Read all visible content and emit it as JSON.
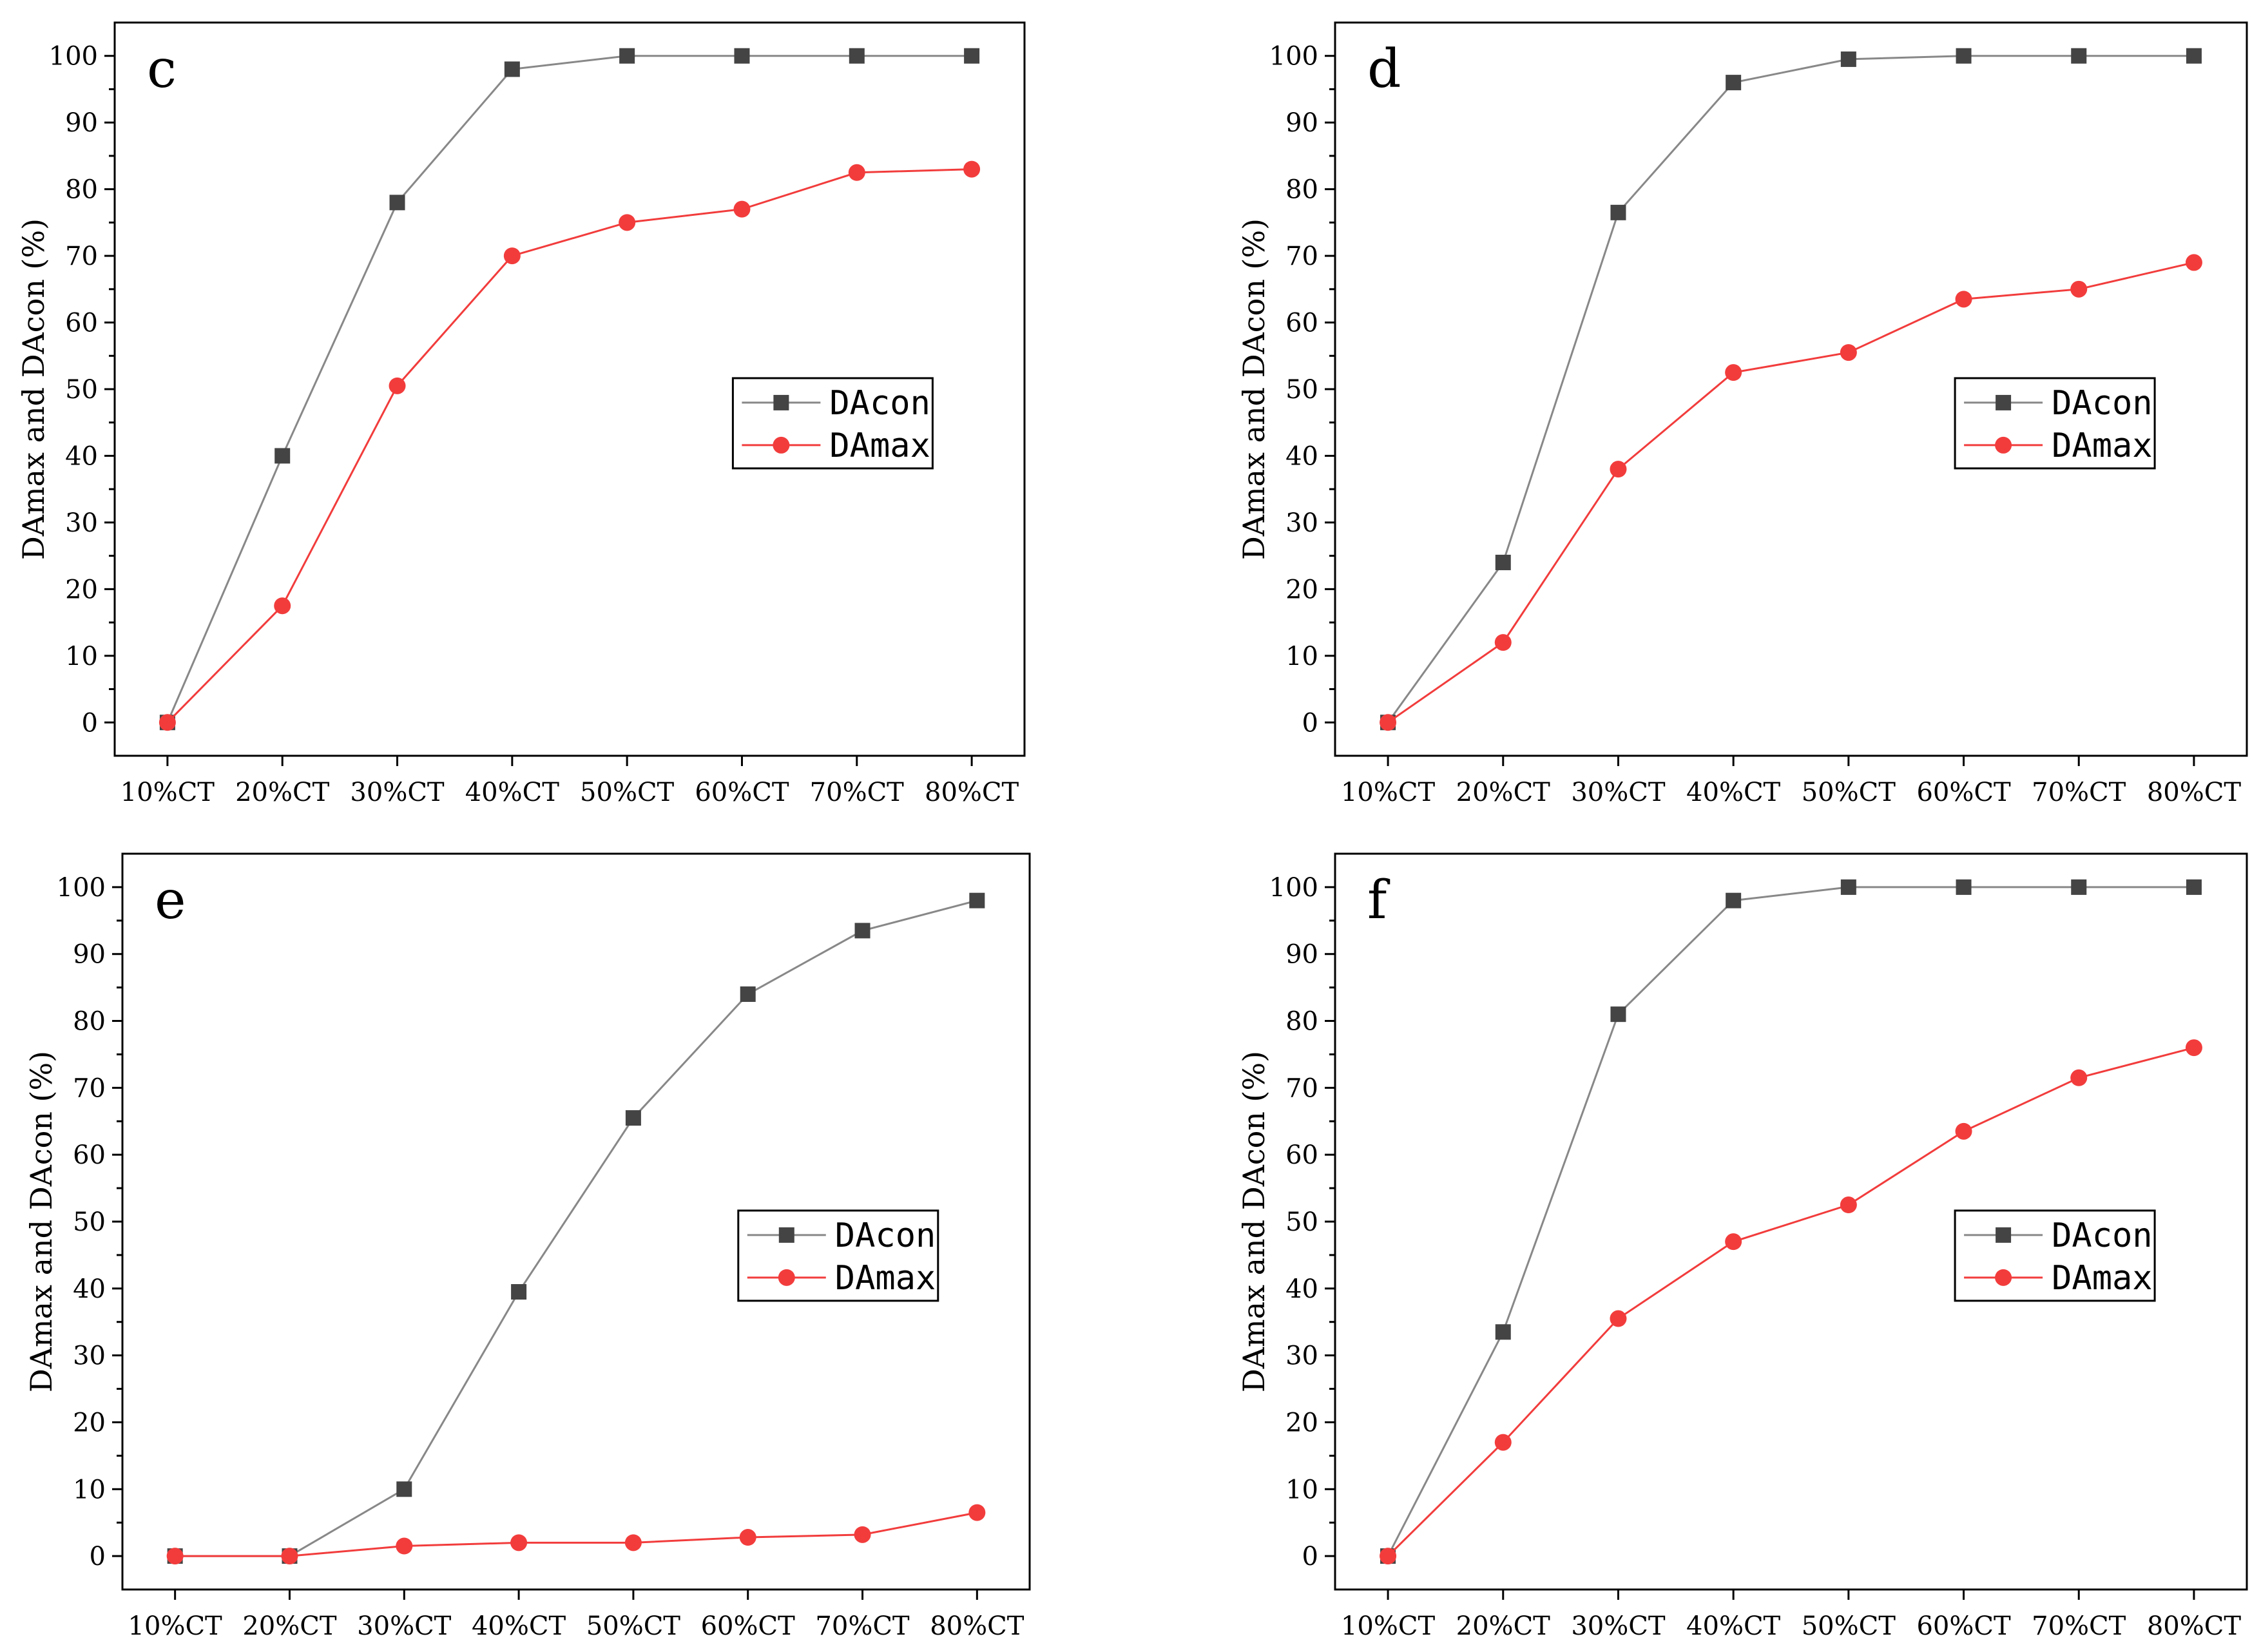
{
  "figure": {
    "panels": [
      {
        "panel_label": "c",
        "ylabel": "DAmax and DAcon (%)",
        "legend": [
          "DAcon",
          "DAmax"
        ]
      },
      {
        "panel_label": "d",
        "ylabel": "DAmax and DAcon (%)",
        "legend": [
          "DAcon",
          "DAmax"
        ]
      },
      {
        "panel_label": "e",
        "ylabel": "DAmax and DAcon (%)",
        "legend": [
          "DAcon",
          "DAmax"
        ]
      },
      {
        "panel_label": "f",
        "ylabel": "DAmax and DAcon (%)",
        "legend": [
          "DAcon",
          "DAmax"
        ]
      }
    ]
  },
  "chart_data": [
    {
      "type": "line",
      "title": "c",
      "xlabel": "",
      "ylabel": "DAmax and DAcon (%)",
      "categories": [
        "10%CT",
        "20%CT",
        "30%CT",
        "40%CT",
        "50%CT",
        "60%CT",
        "70%CT",
        "80%CT"
      ],
      "y_ticks": [
        0,
        10,
        20,
        30,
        40,
        50,
        60,
        70,
        80,
        90,
        100
      ],
      "ylim": [
        -5,
        105
      ],
      "legend_position": "center-right",
      "series": [
        {
          "name": "DAcon",
          "marker": "square",
          "color": "#444444",
          "line_color": "#888888",
          "values": [
            0,
            40,
            78,
            98,
            100,
            100,
            100,
            100
          ]
        },
        {
          "name": "DAmax",
          "marker": "circle",
          "color": "#f23c3c",
          "line_color": "#f23c3c",
          "values": [
            0,
            17.5,
            50.5,
            70,
            75,
            77,
            82.5,
            83
          ]
        }
      ]
    },
    {
      "type": "line",
      "title": "d",
      "xlabel": "",
      "ylabel": "DAmax and DAcon (%)",
      "categories": [
        "10%CT",
        "20%CT",
        "30%CT",
        "40%CT",
        "50%CT",
        "60%CT",
        "70%CT",
        "80%CT"
      ],
      "y_ticks": [
        0,
        10,
        20,
        30,
        40,
        50,
        60,
        70,
        80,
        90,
        100
      ],
      "ylim": [
        -5,
        105
      ],
      "legend_position": "center-right",
      "series": [
        {
          "name": "DAcon",
          "marker": "square",
          "color": "#444444",
          "line_color": "#888888",
          "values": [
            0,
            24,
            76.5,
            96,
            99.5,
            100,
            100,
            100
          ]
        },
        {
          "name": "DAmax",
          "marker": "circle",
          "color": "#f23c3c",
          "line_color": "#f23c3c",
          "values": [
            0,
            12,
            38,
            52.5,
            55.5,
            63.5,
            65,
            69
          ]
        }
      ]
    },
    {
      "type": "line",
      "title": "e",
      "xlabel": "",
      "ylabel": "DAmax and DAcon (%)",
      "categories": [
        "10%CT",
        "20%CT",
        "30%CT",
        "40%CT",
        "50%CT",
        "60%CT",
        "70%CT",
        "80%CT"
      ],
      "y_ticks": [
        0,
        10,
        20,
        30,
        40,
        50,
        60,
        70,
        80,
        90,
        100
      ],
      "ylim": [
        -5,
        105
      ],
      "legend_position": "center-right",
      "series": [
        {
          "name": "DAcon",
          "marker": "square",
          "color": "#444444",
          "line_color": "#888888",
          "values": [
            0,
            0,
            10,
            39.5,
            65.5,
            84,
            93.5,
            98
          ]
        },
        {
          "name": "DAmax",
          "marker": "circle",
          "color": "#f23c3c",
          "line_color": "#f23c3c",
          "values": [
            0,
            0,
            1.5,
            2,
            2,
            2.8,
            3.2,
            6.5
          ]
        }
      ]
    },
    {
      "type": "line",
      "title": "f",
      "xlabel": "",
      "ylabel": "DAmax and DAcon (%)",
      "categories": [
        "10%CT",
        "20%CT",
        "30%CT",
        "40%CT",
        "50%CT",
        "60%CT",
        "70%CT",
        "80%CT"
      ],
      "y_ticks": [
        0,
        10,
        20,
        30,
        40,
        50,
        60,
        70,
        80,
        90,
        100
      ],
      "ylim": [
        -5,
        105
      ],
      "legend_position": "center-right",
      "series": [
        {
          "name": "DAcon",
          "marker": "square",
          "color": "#444444",
          "line_color": "#888888",
          "values": [
            0,
            33.5,
            81,
            98,
            100,
            100,
            100,
            100
          ]
        },
        {
          "name": "DAmax",
          "marker": "circle",
          "color": "#f23c3c",
          "line_color": "#f23c3c",
          "values": [
            0,
            17,
            35.5,
            47,
            52.5,
            63.5,
            71.5,
            76
          ]
        }
      ]
    }
  ]
}
